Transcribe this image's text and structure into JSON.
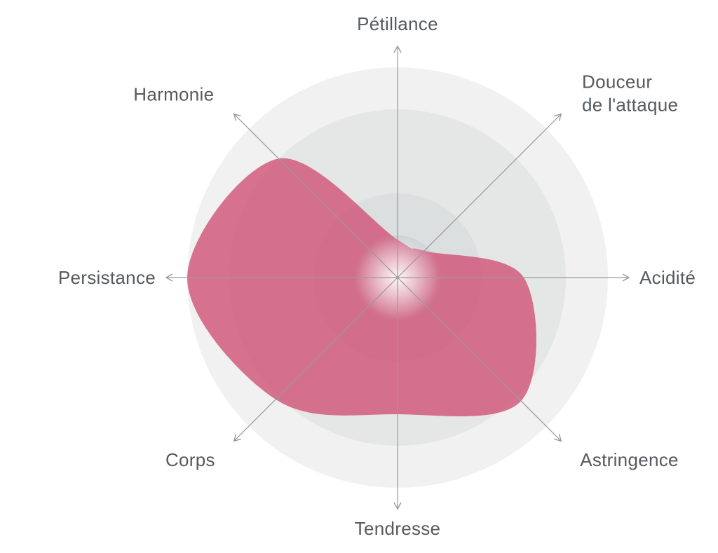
{
  "chart_data": {
    "type": "radar",
    "title": "",
    "axes": [
      "Pétillance",
      "Douceur de l'attaque",
      "Acidité",
      "Astringence",
      "Tendresse",
      "Corps",
      "Persistance",
      "Harmonie"
    ],
    "axis_label_lines": [
      [
        "Pétillance"
      ],
      [
        "Douceur",
        "de l'attaque"
      ],
      [
        "Acidité"
      ],
      [
        "Astringence"
      ],
      [
        "Tendresse"
      ],
      [
        "Corps"
      ],
      [
        "Persistance"
      ],
      [
        "Harmonie"
      ]
    ],
    "series": [
      {
        "values": [
          0.18,
          0.18,
          0.6,
          0.83,
          0.65,
          0.82,
          1.0,
          0.8
        ]
      }
    ],
    "range": [
      0,
      1
    ],
    "rings": 5,
    "grid": true,
    "legend": "none",
    "colors": {
      "series_fill": "#cf5677",
      "ring_outer": "#f1f1f1",
      "ring_mid": "#e5e6e6",
      "ring_inner": "#cdd2d4",
      "axis_line": "#9a9a9a",
      "label_text": "#555a5e"
    }
  }
}
